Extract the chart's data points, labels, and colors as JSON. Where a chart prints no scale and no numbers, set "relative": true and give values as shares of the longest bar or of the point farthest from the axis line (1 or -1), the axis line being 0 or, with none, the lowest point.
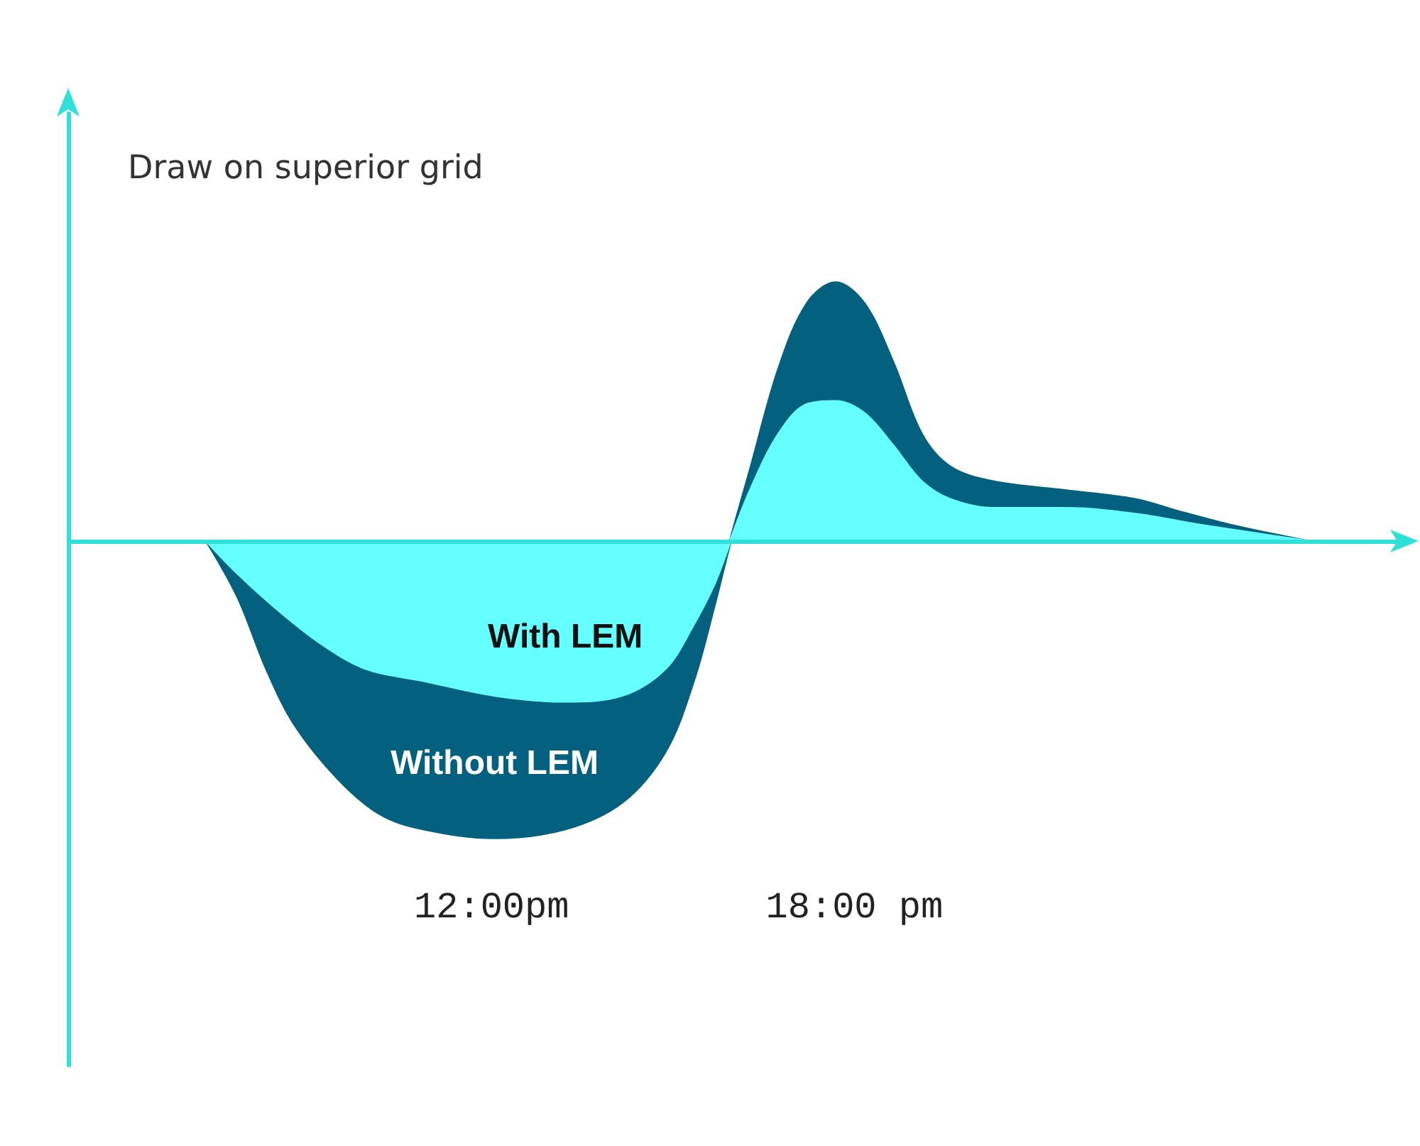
{
  "chart_data": {
    "type": "area",
    "title": "Draw on superior grid",
    "relative": true,
    "tick_labels": "x",
    "marker": "none",
    "ref_lines": [
      {
        "axis": "y",
        "value": 0,
        "color": "#2fe0d8"
      }
    ],
    "xlim": [
      5,
      27
    ],
    "xticks": [
      {
        "value": 12,
        "label": "12:00pm"
      },
      {
        "value": 18,
        "label": "18:00 pm"
      }
    ],
    "series": [
      {
        "name": "Without LEM",
        "color": "#03607f",
        "x": [
          7.29,
          7.81,
          8.28,
          8.75,
          9.46,
          10.16,
          10.87,
          12.05,
          13.22,
          14.16,
          14.87,
          15.34,
          15.69,
          15.95,
          16.28,
          16.75,
          17.22,
          17.69,
          18.16,
          18.64,
          19.11,
          19.58,
          20.28,
          21.46,
          22.64,
          23.34,
          24.28,
          25.46
        ],
        "values": [
          0,
          -0.19,
          -0.43,
          -0.62,
          -0.8,
          -0.92,
          -0.97,
          -1,
          -0.97,
          -0.88,
          -0.71,
          -0.47,
          -0.21,
          0,
          0.24,
          0.58,
          0.8,
          0.87,
          0.8,
          0.6,
          0.36,
          0.25,
          0.2,
          0.17,
          0.14,
          0.1,
          0.05,
          0
        ]
      },
      {
        "name": "With LEM",
        "color": "#66ffff",
        "x": [
          7.29,
          7.81,
          8.52,
          9.22,
          9.93,
          10.87,
          12.05,
          13.22,
          14.16,
          14.87,
          15.34,
          15.69,
          15.95,
          16.28,
          16.75,
          17.22,
          17.69,
          18.16,
          18.64,
          19.11,
          19.58,
          20.28,
          21.46,
          22.64,
          23.81,
          25.46
        ],
        "values": [
          0,
          -0.11,
          -0.24,
          -0.35,
          -0.43,
          -0.47,
          -0.52,
          -0.54,
          -0.52,
          -0.43,
          -0.28,
          -0.14,
          0,
          0.17,
          0.36,
          0.46,
          0.47,
          0.43,
          0.32,
          0.2,
          0.14,
          0.11,
          0.11,
          0.09,
          0.05,
          0
        ]
      }
    ]
  }
}
